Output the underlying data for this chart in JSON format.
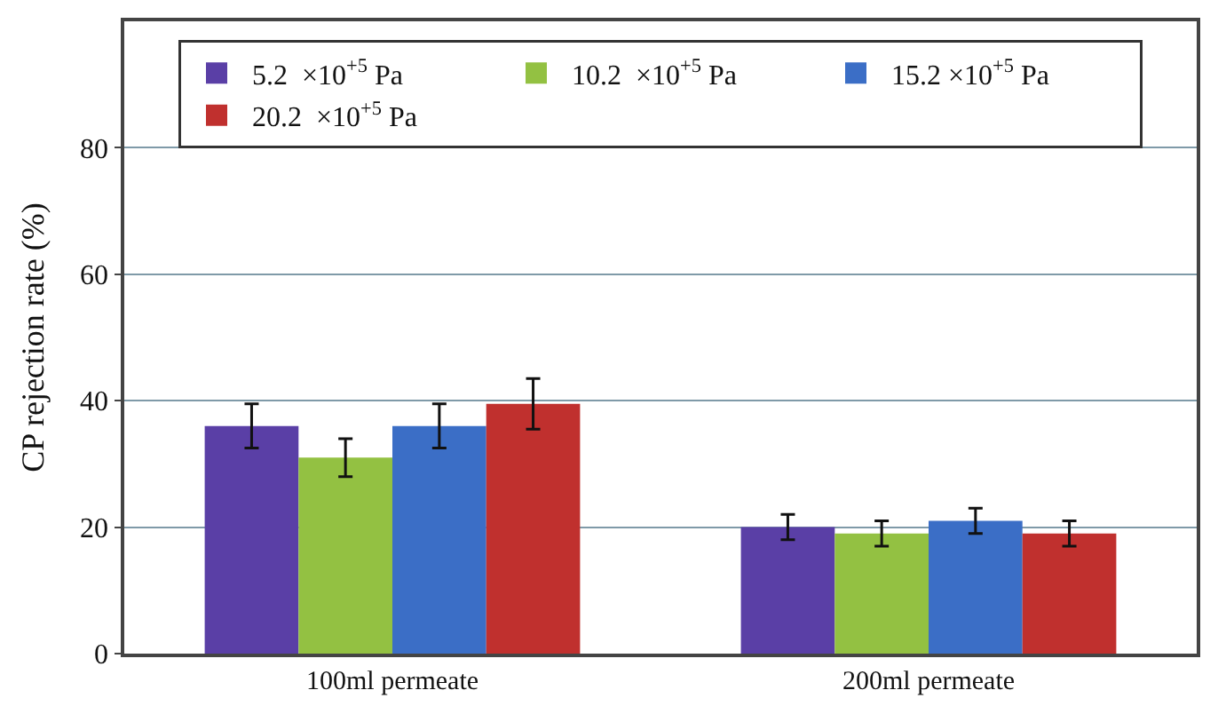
{
  "chart_data": {
    "type": "bar",
    "ylabel": "CP rejection rate (%)",
    "categories": [
      "100ml permeate",
      "200ml permeate"
    ],
    "series": [
      {
        "name": "5.2  ×10$^{+5}$ Pa",
        "color": "#5a3fa6",
        "values": [
          36,
          20
        ],
        "errors": [
          3.5,
          2
        ]
      },
      {
        "name": "10.2  ×10$^{+5}$ Pa",
        "color": "#93c142",
        "values": [
          31,
          19
        ],
        "errors": [
          3,
          2
        ]
      },
      {
        "name": "15.2 ×10$^{+5}$ Pa",
        "color": "#3b6ec6",
        "values": [
          36,
          21
        ],
        "errors": [
          3.5,
          2
        ]
      },
      {
        "name": "20.2  ×10$^{+5}$ Pa",
        "color": "#c0302e",
        "values": [
          39.5,
          19
        ],
        "errors": [
          4,
          2
        ]
      }
    ],
    "ylim": [
      0,
      100
    ],
    "yticks": [
      0,
      20,
      40,
      60,
      80
    ],
    "grid": "y",
    "legend": "top"
  }
}
